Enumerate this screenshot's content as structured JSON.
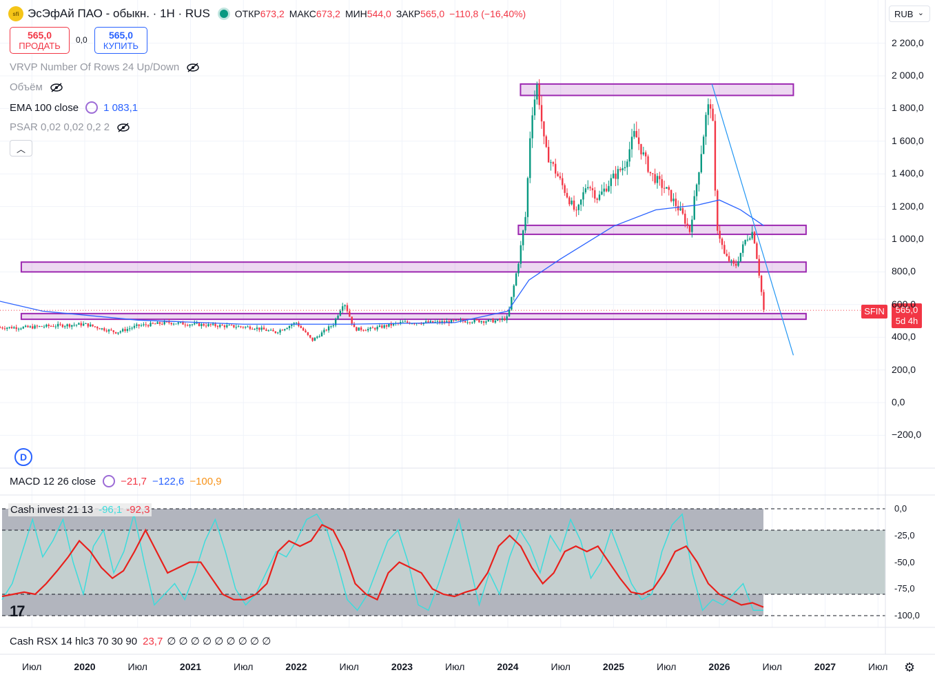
{
  "header": {
    "logo_text": "sfi",
    "title": "ЭсЭфАй ПАО - обыкн. · 1Н · RUS",
    "ohlc": {
      "open_label": "ОТКР",
      "open": "673,2",
      "high_label": "МАКС",
      "high": "673,2",
      "low_label": "МИН",
      "low": "544,0",
      "close_label": "ЗАКР",
      "close": "565,0",
      "change": "−110,8 (−16,40%)"
    },
    "currency": "RUB"
  },
  "trade": {
    "sell_price": "565,0",
    "sell_label": "ПРОДАТЬ",
    "spread": "0,0",
    "buy_price": "565,0",
    "buy_label": "КУПИТЬ"
  },
  "indicators": {
    "vrvp": "VRVP Number Of Rows 24 Up/Down",
    "volume": "Объём",
    "ema_label": "EMA 100 close",
    "ema_value": "1 083,1",
    "psar": "PSAR 0,02 0,02 0,2 2"
  },
  "badges": {
    "dividend": "D"
  },
  "macd": {
    "label": "MACD 12 26 close",
    "v1": "−21,7",
    "v2": "−122,6",
    "v3": "−100,9"
  },
  "cash": {
    "label": "Cash invest 21 13",
    "v1": "-96,1",
    "v2": "-92,3"
  },
  "rsx": {
    "label": "Cash RSX 14 hlc3 70 30 90",
    "v1": "23,7",
    "zeros": "∅ ∅ ∅ ∅ ∅ ∅ ∅ ∅ ∅"
  },
  "price_tag": {
    "symbol": "SFIN",
    "price": "565,0",
    "countdown": "5d 4h"
  },
  "colors": {
    "up": "#089981",
    "down": "#f23645",
    "ema": "#2962ff",
    "zone": "#9c27b0",
    "cash_fast": "#3ddcdc",
    "cash_slow": "#e8201c"
  },
  "chart_data": [
    {
      "type": "candlestick",
      "series_name": "SFIN",
      "timeframe": "1Н",
      "y_axis": {
        "ticks": [
          "2 200,0",
          "2 000,0",
          "1 800,0",
          "1 600,0",
          "1 400,0",
          "1 200,0",
          "1 000,0",
          "800,0",
          "600,0",
          "400,0",
          "200,0",
          "0,0",
          "−200,0"
        ],
        "range": [
          -270,
          2270
        ]
      },
      "x_axis": {
        "ticks": [
          "Июл",
          "2020",
          "Июл",
          "2021",
          "Июл",
          "2022",
          "Июл",
          "2023",
          "Июл",
          "2024",
          "Июл",
          "2025",
          "Июл",
          "2026",
          "Июл",
          "2027",
          "Июл"
        ]
      },
      "anchors": [
        {
          "t": 2019.45,
          "p": 460
        },
        {
          "t": 2019.7,
          "p": 470
        },
        {
          "t": 2020.0,
          "p": 480
        },
        {
          "t": 2020.3,
          "p": 430
        },
        {
          "t": 2020.5,
          "p": 470
        },
        {
          "t": 2020.8,
          "p": 490
        },
        {
          "t": 2021.0,
          "p": 480
        },
        {
          "t": 2021.3,
          "p": 470
        },
        {
          "t": 2021.6,
          "p": 460
        },
        {
          "t": 2021.8,
          "p": 430
        },
        {
          "t": 2022.0,
          "p": 490
        },
        {
          "t": 2022.15,
          "p": 380
        },
        {
          "t": 2022.35,
          "p": 480
        },
        {
          "t": 2022.45,
          "p": 620
        },
        {
          "t": 2022.55,
          "p": 450
        },
        {
          "t": 2022.7,
          "p": 450
        },
        {
          "t": 2023.0,
          "p": 490
        },
        {
          "t": 2023.3,
          "p": 490
        },
        {
          "t": 2023.6,
          "p": 500
        },
        {
          "t": 2023.9,
          "p": 500
        },
        {
          "t": 2024.0,
          "p": 520
        },
        {
          "t": 2024.1,
          "p": 860
        },
        {
          "t": 2024.17,
          "p": 1150
        },
        {
          "t": 2024.22,
          "p": 1750
        },
        {
          "t": 2024.28,
          "p": 1950
        },
        {
          "t": 2024.35,
          "p": 1550
        },
        {
          "t": 2024.5,
          "p": 1350
        },
        {
          "t": 2024.65,
          "p": 1150
        },
        {
          "t": 2024.75,
          "p": 1350
        },
        {
          "t": 2024.85,
          "p": 1250
        },
        {
          "t": 2025.0,
          "p": 1380
        },
        {
          "t": 2025.1,
          "p": 1450
        },
        {
          "t": 2025.2,
          "p": 1650
        },
        {
          "t": 2025.35,
          "p": 1400
        },
        {
          "t": 2025.5,
          "p": 1300
        },
        {
          "t": 2025.65,
          "p": 1150
        },
        {
          "t": 2025.72,
          "p": 1050
        },
        {
          "t": 2025.8,
          "p": 1400
        },
        {
          "t": 2025.88,
          "p": 1780
        },
        {
          "t": 2025.93,
          "p": 1850
        },
        {
          "t": 2025.97,
          "p": 1100
        },
        {
          "t": 2026.05,
          "p": 900
        },
        {
          "t": 2026.15,
          "p": 830
        },
        {
          "t": 2026.25,
          "p": 1000
        },
        {
          "t": 2026.32,
          "p": 1050
        },
        {
          "t": 2026.37,
          "p": 820
        },
        {
          "t": 2026.42,
          "p": 565
        }
      ],
      "ema100": [
        {
          "t": 2019.0,
          "p": 650
        },
        {
          "t": 2019.6,
          "p": 560
        },
        {
          "t": 2020.5,
          "p": 505
        },
        {
          "t": 2021.5,
          "p": 480
        },
        {
          "t": 2022.5,
          "p": 480
        },
        {
          "t": 2023.5,
          "p": 490
        },
        {
          "t": 2024.0,
          "p": 560
        },
        {
          "t": 2024.2,
          "p": 750
        },
        {
          "t": 2024.5,
          "p": 880
        },
        {
          "t": 2025.0,
          "p": 1080
        },
        {
          "t": 2025.4,
          "p": 1180
        },
        {
          "t": 2025.8,
          "p": 1210
        },
        {
          "t": 2026.0,
          "p": 1240
        },
        {
          "t": 2026.2,
          "p": 1180
        },
        {
          "t": 2026.42,
          "p": 1083
        }
      ],
      "zones": [
        {
          "t0": 2024.12,
          "t1": 2026.7,
          "low": 1880,
          "high": 1950
        },
        {
          "t0": 2024.1,
          "t1": 2026.82,
          "low": 1030,
          "high": 1085
        },
        {
          "t0": 2019.4,
          "t1": 2026.82,
          "low": 800,
          "high": 860
        },
        {
          "t0": 2019.4,
          "t1": 2026.82,
          "low": 510,
          "high": 545
        }
      ],
      "trendline": {
        "t0": 2025.93,
        "p0": 1950,
        "t1": 2026.7,
        "p1": 290
      },
      "last_price": 565.0
    },
    {
      "type": "line",
      "name": "Cash invest 21 13",
      "y_axis": {
        "ticks": [
          "0,0",
          "-25,0",
          "-50,0",
          "-75,0",
          "-100,0"
        ],
        "range": [
          -105,
          0
        ]
      },
      "levels": [
        0,
        -20,
        -80,
        -100
      ],
      "fast": [
        -85,
        -70,
        -40,
        -10,
        -45,
        -30,
        -10,
        -50,
        -80,
        -35,
        -20,
        -60,
        -40,
        -5,
        -50,
        -90,
        -80,
        -70,
        -85,
        -60,
        -30,
        -10,
        -40,
        -75,
        -90,
        -80,
        -60,
        -40,
        -45,
        -30,
        -10,
        -5,
        -20,
        -50,
        -85,
        -95,
        -80,
        -55,
        -30,
        -20,
        -50,
        -90,
        -95,
        -70,
        -40,
        -10,
        -50,
        -90,
        -60,
        -80,
        -45,
        -20,
        -35,
        -60,
        -25,
        -40,
        -10,
        -30,
        -65,
        -50,
        -20,
        -45,
        -70,
        -85,
        -80,
        -40,
        -15,
        -5,
        -60,
        -95,
        -85,
        -90,
        -80,
        -70,
        -95,
        -95
      ],
      "slow": [
        -82,
        -80,
        -78,
        -80,
        -70,
        -58,
        -45,
        -30,
        -40,
        -55,
        -65,
        -58,
        -40,
        -20,
        -40,
        -60,
        -55,
        -50,
        -50,
        -65,
        -80,
        -85,
        -85,
        -80,
        -70,
        -40,
        -30,
        -35,
        -30,
        -15,
        -20,
        -40,
        -70,
        -80,
        -85,
        -60,
        -50,
        -55,
        -60,
        -75,
        -80,
        -82,
        -78,
        -75,
        -60,
        -35,
        -25,
        -35,
        -55,
        -70,
        -60,
        -40,
        -35,
        -40,
        -35,
        -50,
        -65,
        -78,
        -80,
        -75,
        -60,
        -40,
        -35,
        -50,
        -70,
        -80,
        -85,
        -90,
        -88,
        -92
      ]
    }
  ]
}
